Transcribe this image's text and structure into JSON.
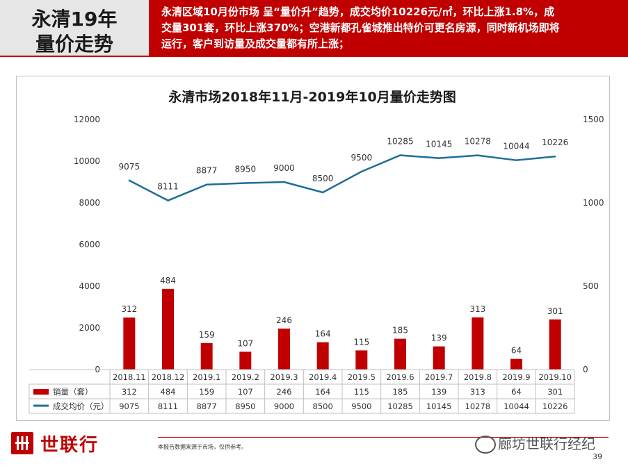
{
  "header": {
    "title_line1": "永清19年",
    "title_line2": "量价走势",
    "summary_line1": "永清区域10月份市场 呈“量价升”趋势，成交均价10226元/㎡，环比上涨1.8%，成",
    "summary_line2": "交量301套，环比上涨370%；空港新都孔雀城推出特价可更名房源，同时新机场即将",
    "summary_line3": "运行，客户到访量及成交量都有所上涨；"
  },
  "colors": {
    "brand": "#c00000",
    "bar": "#c00000",
    "line": "#1f6e96"
  },
  "chart_data": {
    "type": "bar+line",
    "title": "永清市场2018年11月-2019年10月量价走势图",
    "categories": [
      "2018.11",
      "2018.12",
      "2019.1",
      "2019.2",
      "2019.3",
      "2019.4",
      "2019.5",
      "2019.6",
      "2019.7",
      "2019.8",
      "2019.9",
      "2019.10"
    ],
    "series": [
      {
        "name": "销量（套）",
        "kind": "bar",
        "axis": "right",
        "values": [
          312,
          484,
          159,
          107,
          246,
          164,
          115,
          185,
          139,
          313,
          64,
          301
        ]
      },
      {
        "name": "成交均价（元）",
        "kind": "line",
        "axis": "left",
        "values": [
          9075,
          8111,
          8877,
          8950,
          9000,
          8500,
          9500,
          10285,
          10145,
          10278,
          10044,
          10226
        ]
      }
    ],
    "y_left": {
      "ticks": [
        "12000",
        "10000",
        "8000",
        "6000",
        "4000",
        "2000",
        "0"
      ],
      "ylim": [
        0,
        12000
      ]
    },
    "y_right": {
      "ticks": [
        "1500",
        "1000",
        "500",
        "0"
      ],
      "ylim": [
        0,
        1500
      ]
    },
    "legend": "table-below"
  },
  "footer": {
    "logo_text": "世联行",
    "note": "本报告数据来源于市场，仅供参考。",
    "wechat": "廊坊世联行经纪",
    "page": "39"
  }
}
